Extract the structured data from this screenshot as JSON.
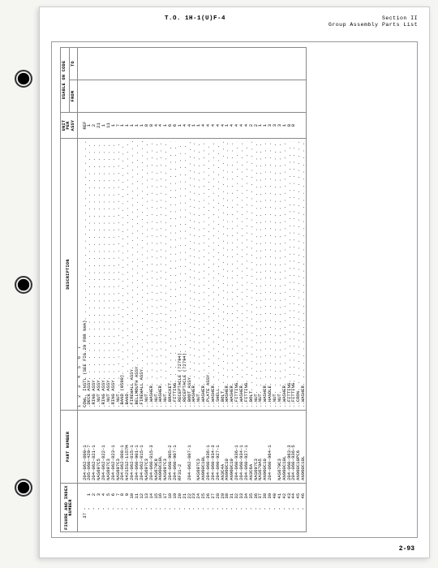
{
  "header": {
    "title": "T.O. 1H-1(U)F-4",
    "section_line1": "Section II",
    "section_line2": "Group Assembly Parts List"
  },
  "footer": {
    "page": "2-93"
  },
  "columns": {
    "c1": "FIGURE AND INDEX NUMBER",
    "c2": "PART NUMBER",
    "c3": "DESCRIPTION",
    "c4": "UNIT PER ASSY",
    "c5_top": "USABLE ON CODE",
    "c5": "FROM",
    "c6": "TO"
  },
  "ruler": "1 2 3 4 5 6 7",
  "figure": "37",
  "rows": [
    {
      "i": "",
      "p": "204-062-800-1",
      "d": "COWL, INSTL (SEE FIG.29 FOR NHA)",
      "u": "REF"
    },
    {
      "i": "1",
      "p": "205-060-429-7",
      "d": ".DECK ASSY",
      "u": "1"
    },
    {
      "i": "2",
      "p": "204-062-821-1",
      "d": ".RING ASSY",
      "u": "2"
    },
    {
      "i": "3",
      "p": "NAS697C5",
      "d": "..NUT ASSY",
      "u": "21"
    },
    {
      "i": "4",
      "p": "204-062-822-1",
      "d": ".RING ASSY",
      "u": "1"
    },
    {
      "i": "5",
      "p": "NAS697C3",
      "d": "..NUT ASSY",
      "u": "11"
    },
    {
      "i": "6",
      "p": "204-062-823-1",
      "d": ".RING ASSY",
      "u": "1"
    },
    {
      "i": "7",
      "p": "NAS697C3",
      "d": "..NUT",
      "u": "7"
    },
    {
      "i": "8",
      "p": "204-062-808-1",
      "d": ".BAND (9598)",
      "u": "1"
    },
    {
      "i": "9",
      "p": "N4215S2-1157M",
      "d": ".BAND",
      "u": "1"
    },
    {
      "i": "10",
      "p": "204-062-815-1",
      "d": ".FIREWALL ASSY",
      "u": "1"
    },
    {
      "i": "11",
      "p": "204-060-901-1",
      "d": ".BELLMOUTH ASSY",
      "u": "1"
    },
    {
      "i": "12",
      "p": "204-062-815-1",
      "d": ".FIREWALL ASSY",
      "u": "1"
    },
    {
      "i": "13",
      "p": "NAS697C3",
      "d": "..NUT",
      "u": "8"
    },
    {
      "i": "14",
      "p": "204-060-815-3",
      "d": "..WASHER",
      "u": "8"
    },
    {
      "i": "15",
      "p": "NAS679C8",
      "d": "..NUT",
      "u": "4"
    },
    {
      "i": "16",
      "p": "AN960C10L",
      "d": "..WASHER",
      "u": "4"
    },
    {
      "i": "17",
      "p": "NAS697C3",
      "d": "..NUT",
      "u": "1"
    },
    {
      "i": "18",
      "p": "204-060-905-2",
      "d": "..BRACKET",
      "u": "6"
    },
    {
      "i": "19",
      "p": "204-060-907-1",
      "d": "..FITTING",
      "u": "6"
    },
    {
      "i": "20",
      "p": "RF31-2",
      "d": "..RECEPTACLE (72794)",
      "u": "1"
    },
    {
      "i": "21",
      "p": "",
      "d": "..RECEPTACLE (72794)",
      "u": "4"
    },
    {
      "i": "22",
      "p": "204-062-807-1",
      "d": "..BOOT ASSY",
      "u": "4"
    },
    {
      "i": "23",
      "p": "",
      "d": "..WASHER",
      "u": "1"
    },
    {
      "i": "24",
      "p": "NAS697C3",
      "d": "..NUT",
      "u": "1"
    },
    {
      "i": "25",
      "p": "AN960C10L",
      "d": "..WASHER",
      "u": "4"
    },
    {
      "i": "26",
      "p": "204-060-936-1",
      "d": "..PLATE ASSY",
      "u": "4"
    },
    {
      "i": "27",
      "p": "204-060-934-3",
      "d": "..WASHER",
      "u": "4"
    },
    {
      "i": "28",
      "p": "204-060-927-1",
      "d": "..SHELL",
      "u": "4"
    },
    {
      "i": "29",
      "p": "AN3C4A",
      "d": "..BOLT",
      "u": "4"
    },
    {
      "i": "30",
      "p": "AN960C10",
      "d": "..WASHER",
      "u": "1"
    },
    {
      "i": "31",
      "p": "AN960C10",
      "d": "..WASHER",
      "u": "4"
    },
    {
      "i": "32",
      "p": "204-060-936-1",
      "d": "..FITTING",
      "u": "4"
    },
    {
      "i": "33",
      "p": "204-060-934-1",
      "d": "..WASHER",
      "u": "4"
    },
    {
      "i": "34",
      "p": "204-060-927-1",
      "d": "..FITTING",
      "u": "4"
    },
    {
      "i": "35",
      "p": "AN3C6A",
      "d": "..BOLT",
      "u": "2"
    },
    {
      "i": "36",
      "p": "NAS697C3",
      "d": "..NUT",
      "u": "2"
    },
    {
      "i": "37",
      "p": "NAS679A5",
      "d": "..NUT",
      "u": "1"
    },
    {
      "i": "38",
      "p": "AN960C10",
      "d": "..WASHER",
      "u": "1"
    },
    {
      "i": "39",
      "p": "204-060-964-1",
      "d": "..HANDLE",
      "u": "3"
    },
    {
      "i": "40",
      "p": "",
      "d": "..NUT",
      "u": "3"
    },
    {
      "i": "41",
      "p": "NAS679C3",
      "d": "..NUT",
      "u": "3"
    },
    {
      "i": "42",
      "p": "AN960C10L",
      "d": "..WASHER",
      "u": "1"
    },
    {
      "i": "43",
      "p": "204-060-963-3",
      "d": "..FITTING",
      "u": "8"
    },
    {
      "i": "44",
      "p": "204-060-936-5",
      "d": "..FITTING",
      "u": "8"
    },
    {
      "i": "45",
      "p": "AN960C10PC6",
      "d": "..CRON",
      "u": ""
    },
    {
      "i": "46",
      "p": "AN960C10L",
      "d": "..WASHER",
      "u": ""
    }
  ]
}
